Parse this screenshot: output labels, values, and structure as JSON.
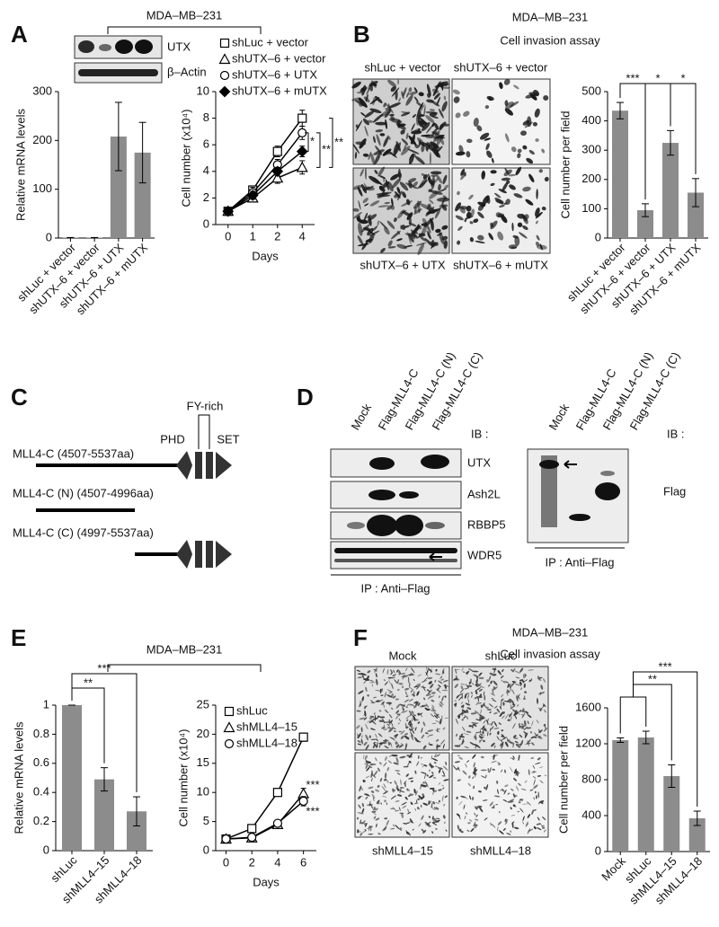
{
  "panel_labels": [
    "A",
    "B",
    "C",
    "D",
    "E",
    "F"
  ],
  "panel_a": {
    "cell_line": "MDA–MB–231",
    "blot_labels": [
      "UTX",
      "β–Actin"
    ]
  },
  "panel_b": {
    "title": "MDA–MB–231",
    "subtitle": "Cell invasion assay",
    "image_labels": [
      "shLuc + vector",
      "shUTX–6 + vector",
      "shUTX–6 + UTX",
      "shUTX–6 + mUTX"
    ]
  },
  "panel_c": {
    "constructs": [
      "MLL4-C (4507-5537aa)",
      "MLL4-C (N) (4507-4996aa)",
      "MLL4-C (C) (4997-5537aa)"
    ],
    "domains": [
      "PHD",
      "FY-rich",
      "SET"
    ]
  },
  "panel_d": {
    "lanes": [
      "Mock",
      "Flag-MLL4-C",
      "Flag-MLL4-C (N)",
      "Flag-MLL4-C (C)"
    ],
    "ib_label": "IB :",
    "blot_labels": [
      "UTX",
      "Ash2L",
      "RBBP5",
      "WDR5"
    ],
    "ip_label": "IP : Anti–Flag",
    "right_lanes": [
      "Mock",
      "Flag-MLL4-C",
      "Flag-MLL4-C (N)",
      "Flag-MLL4-C (C)"
    ],
    "right_ib_label": "IB :",
    "right_blot_label": "Flag",
    "right_ip_label": "IP : Anti–Flag"
  },
  "panel_e": {
    "cell_line": "MDA–MB–231"
  },
  "panel_f": {
    "title": "MDA–MB–231",
    "subtitle": "Cell invasion assay",
    "image_labels": [
      "Mock",
      "shLuc",
      "shMLL4–15",
      "shMLL4–18"
    ]
  },
  "chart_data": [
    {
      "type": "bar",
      "ylabel": "Relative mRNA levels",
      "categories": [
        "shLuc + vector",
        "shUTX–6 + vector",
        "shUTX–6 + UTX",
        "shUTX–6 + mUTX"
      ],
      "values": [
        1,
        1,
        208,
        175
      ],
      "errors": [
        0,
        0,
        70,
        62
      ],
      "color": "#8c8c8c",
      "ylim": [
        0,
        300
      ],
      "yticks": [
        0,
        100,
        200,
        300
      ]
    },
    {
      "type": "line",
      "xlabel": "Days",
      "ylabel": "Cell number (x10⁴)",
      "categories": [
        "0",
        "1",
        "2",
        "4"
      ],
      "ylim": [
        0,
        10
      ],
      "yticks": [
        0,
        2,
        4,
        6,
        8,
        10
      ],
      "color": "#000000",
      "series": [
        {
          "name": "shLuc + vector",
          "marker": "square",
          "values": [
            1,
            2.6,
            5.5,
            8
          ],
          "errors": [
            0.1,
            0.3,
            0.4,
            0.6
          ]
        },
        {
          "name": "shUTX–6 + vector",
          "marker": "triangle",
          "values": [
            1,
            2,
            3.5,
            4.3
          ],
          "errors": [
            0.1,
            0.3,
            0.4,
            0.5
          ]
        },
        {
          "name": "shUTX–6 + UTX",
          "marker": "circle",
          "values": [
            1,
            2.4,
            4.5,
            6.9
          ],
          "errors": [
            0.1,
            0.4,
            0.4,
            0.5
          ]
        },
        {
          "name": "shUTX–6 + mUTX",
          "marker": "diamond",
          "values": [
            1,
            2.2,
            4,
            5.5
          ],
          "errors": [
            0.1,
            0.3,
            0.3,
            0.4
          ]
        }
      ],
      "annotations": [
        "*",
        "**",
        "**"
      ]
    },
    {
      "type": "bar",
      "ylabel": "Cell number per field",
      "categories": [
        "shLuc + vector",
        "shUTX–6 + vector",
        "shUTX–6 + UTX",
        "shUTX–6 + mUTX"
      ],
      "values": [
        435,
        95,
        325,
        155
      ],
      "errors": [
        28,
        22,
        42,
        48
      ],
      "color": "#8c8c8c",
      "ylim": [
        0,
        500
      ],
      "yticks": [
        0,
        100,
        200,
        300,
        400,
        500
      ],
      "annotations": [
        "***",
        "*",
        "*"
      ]
    },
    {
      "type": "bar",
      "ylabel": "Relative mRNA levels",
      "categories": [
        "shLuc",
        "shMLL4–15",
        "shMLL4–18"
      ],
      "values": [
        1,
        0.49,
        0.27
      ],
      "errors": [
        0,
        0.08,
        0.1
      ],
      "color": "#8c8c8c",
      "ylim": [
        0,
        1
      ],
      "yticks": [
        0,
        0.2,
        0.4,
        0.6,
        0.8,
        1
      ],
      "annotations": [
        "**",
        "***"
      ]
    },
    {
      "type": "line",
      "xlabel": "Days",
      "ylabel": "Cell number (x10⁴)",
      "x": [
        0,
        2,
        4,
        6
      ],
      "xlim": [
        -0.8,
        7
      ],
      "xticks": [
        0,
        2,
        4,
        6
      ],
      "ylim": [
        0,
        25
      ],
      "yticks": [
        0,
        5,
        10,
        15,
        20,
        25
      ],
      "color": "#000000",
      "series": [
        {
          "name": "shLuc",
          "marker": "square",
          "values": [
            2,
            3.8,
            10,
            19.5
          ],
          "errors": [
            0.2,
            0.6,
            0.3,
            0.7
          ]
        },
        {
          "name": "shMLL4–15",
          "marker": "triangle",
          "values": [
            2,
            2.2,
            4.5,
            9.8
          ],
          "errors": [
            0.2,
            0.3,
            0.5,
            0.9
          ]
        },
        {
          "name": "shMLL4–18",
          "marker": "circle",
          "values": [
            2,
            2.3,
            4.7,
            8.5
          ],
          "errors": [
            0.2,
            0.3,
            0.4,
            0.8
          ]
        }
      ],
      "annotations": [
        "***",
        "***"
      ]
    },
    {
      "type": "bar",
      "ylabel": "Cell number per field",
      "categories": [
        "Mock",
        "shLuc",
        "shMLL4–15",
        "shMLL4–18"
      ],
      "values": [
        1240,
        1270,
        840,
        370
      ],
      "errors": [
        25,
        70,
        125,
        80
      ],
      "color": "#8c8c8c",
      "ylim": [
        0,
        1600
      ],
      "yticks": [
        0,
        400,
        800,
        1200,
        1600
      ],
      "annotations": [
        "**",
        "***"
      ]
    }
  ]
}
